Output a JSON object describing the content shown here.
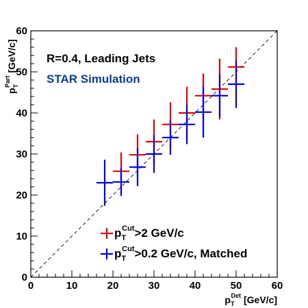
{
  "chart_data": {
    "type": "scatter",
    "title": "",
    "annotations": [
      {
        "text": "R=0.4, Leading Jets",
        "color": "#000000"
      },
      {
        "text": "STAR Simulation",
        "color": "#0a3c96"
      }
    ],
    "xlabel": {
      "base": "p",
      "sub": "T",
      "sup": "Det",
      "unit": "[GeV/c]"
    },
    "ylabel": {
      "base": "p",
      "sub": "T",
      "sup": "Part",
      "unit": "[GeV/c]"
    },
    "xlim": [
      0,
      60
    ],
    "ylim": [
      0,
      60
    ],
    "xticks": [
      "0",
      "10",
      "20",
      "30",
      "40",
      "50",
      "60"
    ],
    "yticks": [
      "0",
      "10",
      "20",
      "30",
      "40",
      "50",
      "60"
    ],
    "grid": false,
    "diagonal": "y = x",
    "legend_position": "bottom-center",
    "series": [
      {
        "name": "p_T^Cut>2 GeV/c",
        "legend": {
          "base": "p",
          "sub": "T",
          "sup": "Cut",
          "rest": ">2 GeV/c"
        },
        "color": "#e00000",
        "points": [
          {
            "x": 22,
            "xerr": 2,
            "y": 25.8,
            "ylo": 21.2,
            "yhi": 30.4
          },
          {
            "x": 26,
            "xerr": 2,
            "y": 29.8,
            "ylo": 24.8,
            "yhi": 34.8
          },
          {
            "x": 30,
            "xerr": 2,
            "y": 33.0,
            "ylo": 27.6,
            "yhi": 38.4
          },
          {
            "x": 34,
            "xerr": 2,
            "y": 37.2,
            "ylo": 31.8,
            "yhi": 42.6
          },
          {
            "x": 38,
            "xerr": 2,
            "y": 40.0,
            "ylo": 33.6,
            "yhi": 46.4
          },
          {
            "x": 42,
            "xerr": 2,
            "y": 44.2,
            "ylo": 38.8,
            "yhi": 49.6
          },
          {
            "x": 46,
            "xerr": 2,
            "y": 45.8,
            "ylo": 38.4,
            "yhi": 53.2
          },
          {
            "x": 50,
            "xerr": 2,
            "y": 51.2,
            "ylo": 46.4,
            "yhi": 56.0
          }
        ]
      },
      {
        "name": "p_T^Cut>0.2 GeV/c, Matched",
        "legend": {
          "base": "p",
          "sub": "T",
          "sup": "Cut",
          "rest": ">0.2 GeV/c, Matched"
        },
        "color": "#0000e0",
        "points": [
          {
            "x": 18,
            "xerr": 2,
            "y": 23.0,
            "ylo": 17.4,
            "yhi": 28.6
          },
          {
            "x": 22,
            "xerr": 2,
            "y": 23.2,
            "ylo": 19.8,
            "yhi": 26.6
          },
          {
            "x": 26,
            "xerr": 2,
            "y": 26.8,
            "ylo": 22.2,
            "yhi": 31.4
          },
          {
            "x": 30,
            "xerr": 2,
            "y": 30.0,
            "ylo": 25.4,
            "yhi": 34.6
          },
          {
            "x": 34,
            "xerr": 2,
            "y": 34.0,
            "ylo": 29.8,
            "yhi": 38.2
          },
          {
            "x": 38,
            "xerr": 2,
            "y": 37.2,
            "ylo": 32.4,
            "yhi": 42.0
          },
          {
            "x": 42,
            "xerr": 2,
            "y": 40.2,
            "ylo": 34.0,
            "yhi": 46.4
          },
          {
            "x": 46,
            "xerr": 2,
            "y": 44.2,
            "ylo": 39.0,
            "yhi": 49.4
          },
          {
            "x": 50,
            "xerr": 2,
            "y": 47.0,
            "ylo": 41.2,
            "yhi": 52.8
          }
        ]
      }
    ]
  }
}
